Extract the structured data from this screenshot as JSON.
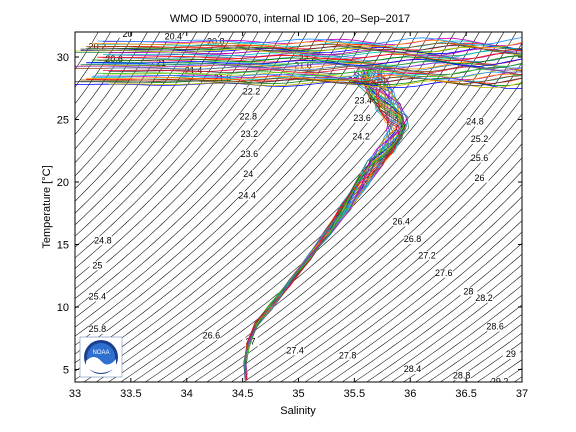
{
  "chart_data": {
    "type": "line",
    "title": "WMO ID 5900070, internal ID 106, 20–Sep–2017",
    "xlabel": "Salinity",
    "ylabel": "Temperature [°C]",
    "xlim": [
      33,
      37
    ],
    "ylim": [
      4,
      32
    ],
    "xticks": [
      33,
      33.5,
      34,
      34.5,
      35,
      35.5,
      36,
      36.5,
      37
    ],
    "xtick_labels": [
      "33",
      "33.5",
      "34",
      "34.5",
      "35",
      "35.5",
      "36",
      "36.5",
      "37"
    ],
    "yticks": [
      5,
      10,
      15,
      20,
      25,
      30
    ],
    "ytick_labels": [
      "5",
      "10",
      "15",
      "20",
      "25",
      "30"
    ],
    "grid": false,
    "density_contours": {
      "color": "#000000",
      "levels": [
        20,
        20.4,
        20.8,
        21.2,
        21.6,
        22,
        22.4,
        22.8,
        23.2,
        23.6,
        24,
        24.4,
        24.8,
        25.2,
        25.6,
        26,
        26.4,
        26.8,
        27.2,
        27.6,
        28,
        28.4,
        28.8,
        29.2
      ],
      "labels": [
        {
          "text": "20",
          "s": 33.47,
          "t": 31.6
        },
        {
          "text": "20.4",
          "s": 33.88,
          "t": 31.4
        },
        {
          "text": "20.8",
          "s": 34.26,
          "t": 31.0
        },
        {
          "text": "20.2",
          "s": 33.2,
          "t": 30.6
        },
        {
          "text": "20.6",
          "s": 33.35,
          "t": 29.6
        },
        {
          "text": "21",
          "s": 33.77,
          "t": 29.3
        },
        {
          "text": "21.4",
          "s": 34.06,
          "t": 28.7
        },
        {
          "text": "21.8",
          "s": 34.32,
          "t": 28.1
        },
        {
          "text": "22.2",
          "s": 34.58,
          "t": 27.0
        },
        {
          "text": "22.8",
          "s": 34.55,
          "t": 25.0
        },
        {
          "text": "23.2",
          "s": 34.56,
          "t": 23.6
        },
        {
          "text": "23.6",
          "s": 34.56,
          "t": 22.0
        },
        {
          "text": "24",
          "s": 34.55,
          "t": 20.4
        },
        {
          "text": "24.4",
          "s": 34.54,
          "t": 18.7
        },
        {
          "text": "24.8",
          "s": 33.25,
          "t": 15.1
        },
        {
          "text": "25",
          "s": 33.2,
          "t": 13.1
        },
        {
          "text": "25.4",
          "s": 33.2,
          "t": 10.6
        },
        {
          "text": "25.8",
          "s": 33.2,
          "t": 8.0
        },
        {
          "text": "26.6",
          "s": 34.22,
          "t": 7.5
        },
        {
          "text": "27",
          "s": 34.57,
          "t": 7.0
        },
        {
          "text": "27.4",
          "s": 34.97,
          "t": 6.3
        },
        {
          "text": "27.8",
          "s": 35.44,
          "t": 5.9
        },
        {
          "text": "28.4",
          "s": 36.02,
          "t": 4.8
        },
        {
          "text": "28.8",
          "s": 36.46,
          "t": 4.3
        },
        {
          "text": "29.2",
          "s": 36.8,
          "t": 3.8
        },
        {
          "text": "29",
          "s": 36.9,
          "t": 6.0
        },
        {
          "text": "28.6",
          "s": 36.76,
          "t": 8.2
        },
        {
          "text": "28.2",
          "s": 36.66,
          "t": 10.5
        },
        {
          "text": "28",
          "s": 36.52,
          "t": 11.0
        },
        {
          "text": "27.6",
          "s": 36.3,
          "t": 12.5
        },
        {
          "text": "27.2",
          "s": 36.15,
          "t": 13.9
        },
        {
          "text": "26.8",
          "s": 36.02,
          "t": 15.2
        },
        {
          "text": "26.4",
          "s": 35.92,
          "t": 16.6
        },
        {
          "text": "26",
          "s": 36.62,
          "t": 20.1
        },
        {
          "text": "25.6",
          "s": 36.62,
          "t": 21.7
        },
        {
          "text": "25.2",
          "s": 36.62,
          "t": 23.2
        },
        {
          "text": "24.8",
          "s": 36.58,
          "t": 24.6
        },
        {
          "text": "24.2",
          "s": 35.56,
          "t": 23.4
        },
        {
          "text": "23.6",
          "s": 35.57,
          "t": 24.9
        },
        {
          "text": "23.4",
          "s": 35.58,
          "t": 26.3
        },
        {
          "text": "22.6",
          "s": 35.52,
          "t": 27.9
        },
        {
          "text": "21.6",
          "s": 35.04,
          "t": 29.1
        },
        {
          "text": "22.2",
          "s": 35.08,
          "t": 29.7
        }
      ]
    },
    "profile_curve": {
      "s": [
        34.53,
        34.52,
        34.55,
        34.62,
        34.75,
        34.92,
        35.1,
        35.27,
        35.42,
        35.56,
        35.68,
        35.78,
        35.86,
        35.9,
        35.88,
        35.8,
        35.72,
        35.66,
        35.63
      ],
      "t": [
        4.4,
        5.5,
        7.0,
        8.5,
        10.0,
        12.0,
        14.0,
        16.0,
        18.0,
        20.0,
        21.5,
        22.5,
        23.5,
        24.3,
        25.0,
        26.0,
        27.0,
        28.0,
        29.0
      ]
    },
    "profiles": {
      "count": 30,
      "colors": [
        "#0000ff",
        "#008000",
        "#ff0000",
        "#00bfbf",
        "#bf00bf",
        "#bfbf00",
        "#404040",
        "#8b4513",
        "#ff8c00",
        "#1e90ff",
        "#32cd32",
        "#dc143c",
        "#4682b4",
        "#9932cc",
        "#2e8b57"
      ]
    },
    "logo": "noaa-logo"
  }
}
